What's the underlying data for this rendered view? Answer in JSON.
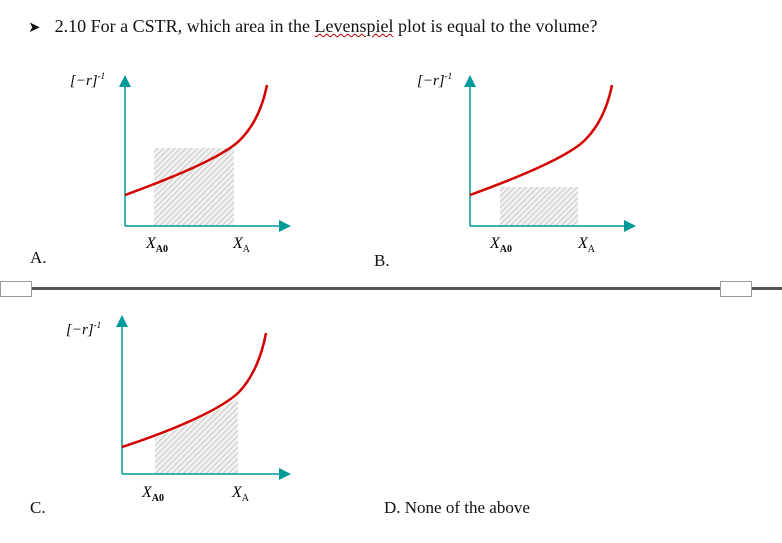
{
  "question": {
    "bullet_icon": "arrow-bullet-icon",
    "prefix": "2.10 For a CSTR, which area in the ",
    "underlined": "Levenspiel",
    "suffix": " plot is equal to the volume?"
  },
  "plot_labels": {
    "y_axis": "[−r]",
    "y_exp": "-1",
    "x0_main": "X",
    "x0_sub": "A0",
    "xa_main": "X",
    "xa_sub": "A"
  },
  "options": {
    "a": "A.",
    "b": "B.",
    "c": "C.",
    "d": "D. None of the above"
  },
  "colors": {
    "axis": "#009999",
    "curve": "#d40000",
    "hatch": "#c8c8c8"
  }
}
